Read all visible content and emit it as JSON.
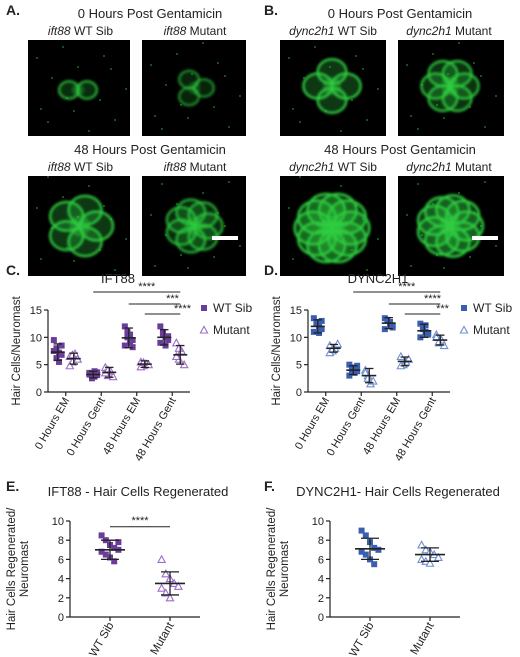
{
  "figure": {
    "panels": {
      "A": {
        "label": "A.",
        "top_heading": "0 Hours Post Gentamicin",
        "bottom_heading": "48 Hours Post Gentamicin",
        "gene": "ift88",
        "col1": " WT Sib",
        "col2": " Mutant"
      },
      "B": {
        "label": "B.",
        "top_heading": "0 Hours Post Gentamicin",
        "bottom_heading": "48 Hours Post Gentamicin",
        "gene": "dync2h1",
        "col1": " WT Sib",
        "col2": " Mutant"
      },
      "C": {
        "label": "C."
      },
      "D": {
        "label": "D."
      },
      "E": {
        "label": "E."
      },
      "F": {
        "label": "F."
      }
    },
    "colors": {
      "wt_purple": "#6a3d9a",
      "mut_purple": "#9b6fc8",
      "wt_blue": "#3a5fb0",
      "mut_blue": "#6f8fd0",
      "green": "#2ecc40"
    }
  },
  "chart_data": [
    {
      "id": "C",
      "type": "scatter",
      "title": "IFT88",
      "ylabel": "Hair Cells/Neuromast",
      "ylim": [
        0,
        15
      ],
      "yticks": [
        0,
        5,
        10,
        15
      ],
      "categories": [
        "0 Hours EM",
        "0 Hours Gent",
        "48 Hours EM",
        "48 Hours Gent"
      ],
      "series": [
        {
          "name": "WT Sib",
          "marker": "square",
          "color": "#6a3d9a",
          "mean": [
            7.3,
            3.2,
            9.9,
            10.0
          ],
          "sd": [
            1.5,
            0.6,
            1.8,
            1.4
          ],
          "points": [
            [
              9.5,
              8.0,
              7.2,
              6.8,
              7.5,
              6.2,
              5.5,
              8.5
            ],
            [
              3.5,
              3.0,
              2.8,
              3.6,
              3.2,
              2.5,
              3.8,
              3.1
            ],
            [
              12.0,
              11.0,
              10.5,
              9.5,
              8.5,
              10.0,
              9.0,
              8.2
            ],
            [
              12.0,
              11.0,
              10.0,
              9.5,
              9.0,
              10.5,
              8.5,
              10.2
            ]
          ]
        },
        {
          "name": "Mutant",
          "marker": "triangle",
          "color": "#9b6fc8",
          "mean": [
            6.1,
            3.6,
            5.1,
            6.8
          ],
          "sd": [
            1.0,
            0.9,
            0.6,
            1.7
          ],
          "points": [
            [
              6.5,
              5.5,
              7.0,
              6.0,
              4.8,
              6.8
            ],
            [
              4.5,
              3.0,
              3.8,
              2.8,
              3.5,
              4.0
            ],
            [
              5.5,
              4.8,
              5.2,
              5.0,
              4.6,
              5.4
            ],
            [
              9.0,
              6.0,
              7.5,
              5.0,
              6.5,
              8.0
            ]
          ]
        }
      ],
      "significance": [
        "****",
        "***",
        "****"
      ]
    },
    {
      "id": "D",
      "type": "scatter",
      "title": "DYNC2H1",
      "ylabel": "Hair Cells/Neuromast",
      "ylim": [
        0,
        15
      ],
      "yticks": [
        0,
        5,
        10,
        15
      ],
      "categories": [
        "0 Hours EM",
        "0 Hours Gent",
        "48 Hours EM",
        "48 Hours Gent"
      ],
      "series": [
        {
          "name": "WT Sib",
          "marker": "square",
          "color": "#3a5fb0",
          "mean": [
            12.0,
            4.0,
            12.6,
            11.2
          ],
          "sd": [
            1.2,
            0.8,
            1.0,
            1.2
          ],
          "points": [
            [
              13.5,
              12.5,
              12.0,
              11.5,
              11.0,
              12.8,
              10.8,
              13.0
            ],
            [
              5.0,
              4.2,
              3.5,
              4.8,
              3.0,
              4.0,
              4.5,
              3.8
            ],
            [
              13.5,
              13.0,
              12.5,
              12.0,
              11.5,
              13.2,
              12.8,
              11.8
            ],
            [
              12.5,
              12.0,
              11.0,
              10.5,
              10.0,
              11.5,
              12.2,
              10.8
            ]
          ]
        },
        {
          "name": "Mutant",
          "marker": "triangle",
          "color": "#6f8fd0",
          "mean": [
            8.0,
            3.0,
            5.6,
            9.5
          ],
          "sd": [
            0.7,
            1.3,
            0.8,
            0.9
          ],
          "points": [
            [
              8.5,
              7.5,
              8.0,
              8.8,
              7.2,
              7.8
            ],
            [
              4.0,
              3.0,
              1.5,
              2.0,
              3.5,
              2.5
            ],
            [
              6.5,
              5.0,
              5.5,
              6.0,
              4.8
            ],
            [
              10.5,
              9.0,
              9.5,
              8.5,
              10.0,
              9.2
            ]
          ]
        }
      ],
      "significance": [
        "****",
        "****",
        "***"
      ]
    },
    {
      "id": "E",
      "type": "scatter",
      "title": "IFT88 - Hair Cells Regenerated",
      "ylabel": "Hair Cells Regenerated/\nNeuromast",
      "ylim": [
        0,
        10
      ],
      "yticks": [
        0,
        2,
        4,
        6,
        8,
        10
      ],
      "categories": [
        "WT Sib",
        "Mutant"
      ],
      "series": [
        {
          "name": "WT Sib",
          "marker": "square",
          "color": "#6a3d9a",
          "category": 0,
          "mean": 7.0,
          "sd": 1.0,
          "points": [
            8.5,
            8.0,
            7.5,
            7.2,
            7.0,
            6.8,
            6.5,
            6.2,
            5.8,
            7.8
          ]
        },
        {
          "name": "Mutant",
          "marker": "triangle",
          "color": "#9b6fc8",
          "category": 1,
          "mean": 3.5,
          "sd": 1.2,
          "points": [
            6.0,
            4.5,
            4.0,
            3.5,
            3.2,
            3.0,
            2.5,
            2.0
          ]
        }
      ],
      "significance": [
        "****"
      ]
    },
    {
      "id": "F",
      "type": "scatter",
      "title": "DYNC2H1- Hair Cells Regenerated",
      "ylabel": "Hair Cells Regenerated/\nNeuromast",
      "ylim": [
        0,
        10
      ],
      "yticks": [
        0,
        2,
        4,
        6,
        8,
        10
      ],
      "categories": [
        "WT Sib",
        "Mutant"
      ],
      "series": [
        {
          "name": "WT Sib",
          "marker": "square",
          "color": "#3a5fb0",
          "category": 0,
          "mean": 7.1,
          "sd": 1.1,
          "points": [
            9.0,
            8.5,
            7.8,
            7.2,
            7.0,
            6.8,
            6.5,
            6.0,
            5.5
          ]
        },
        {
          "name": "Mutant",
          "marker": "triangle",
          "color": "#6f8fd0",
          "category": 1,
          "mean": 6.5,
          "sd": 0.7,
          "points": [
            7.5,
            7.0,
            6.8,
            6.5,
            6.2,
            6.0,
            5.8,
            5.6
          ]
        }
      ],
      "significance": []
    }
  ]
}
